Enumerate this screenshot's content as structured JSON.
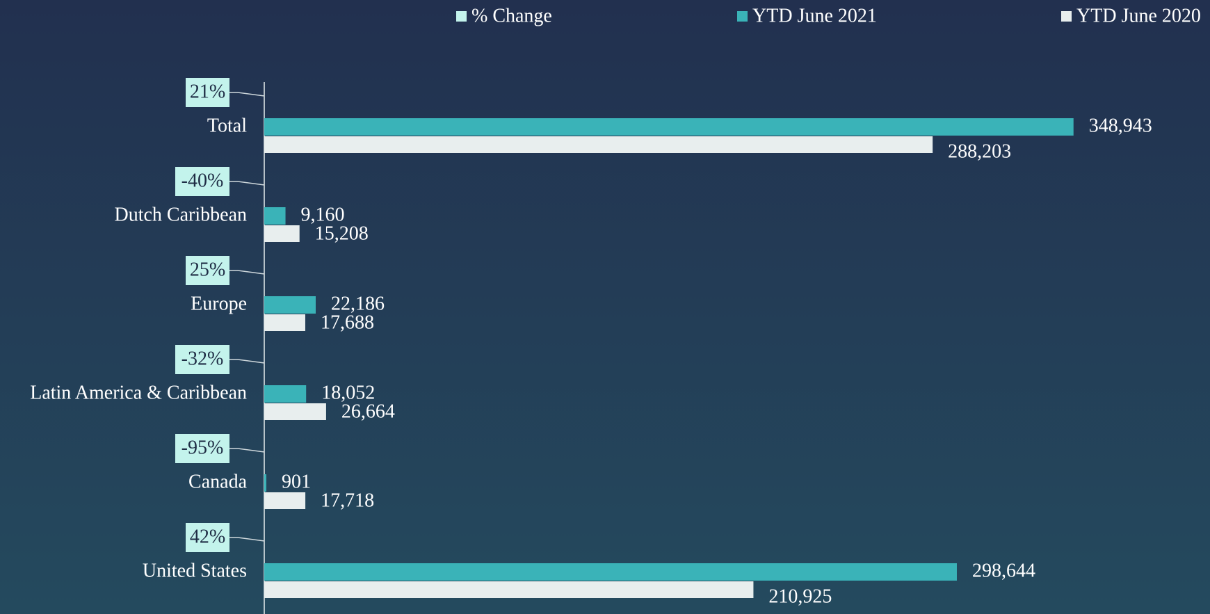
{
  "chart_data": {
    "type": "bar",
    "orientation": "horizontal",
    "categories": [
      "Total",
      "Dutch Caribbean",
      "Europe",
      "Latin America & Caribbean",
      "Canada",
      "United States"
    ],
    "series": [
      {
        "name": "% Change",
        "color": "#c3f3ec",
        "values": [
          21,
          -40,
          25,
          -32,
          -95,
          42
        ],
        "value_labels": [
          "21%",
          "-40%",
          "25%",
          "-32%",
          "-95%",
          "42%"
        ]
      },
      {
        "name": "YTD June 2021",
        "color": "#3ab3b8",
        "values": [
          348943,
          9160,
          22186,
          18052,
          901,
          298644
        ],
        "value_labels": [
          "348,943",
          "9,160",
          "22,186",
          "18,052",
          "901",
          "298,644"
        ]
      },
      {
        "name": "YTD June 2020",
        "color": "#e8eeee",
        "values": [
          288203,
          15208,
          17688,
          26664,
          17718,
          210925
        ],
        "value_labels": [
          "288,203",
          "15,208",
          "17,688",
          "26,664",
          "17,718",
          "210,925"
        ]
      }
    ],
    "xlim": [
      0,
      400000
    ]
  }
}
